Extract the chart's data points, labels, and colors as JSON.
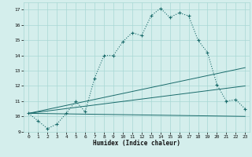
{
  "xlabel": "Humidex (Indice chaleur)",
  "ylabel": "",
  "bg_color": "#d4eeec",
  "grid_color": "#a8d8d4",
  "line_color": "#1a6b6b",
  "xlim": [
    -0.5,
    23.5
  ],
  "ylim": [
    9,
    17.5
  ],
  "xticks": [
    0,
    1,
    2,
    3,
    4,
    5,
    6,
    7,
    8,
    9,
    10,
    11,
    12,
    13,
    14,
    15,
    16,
    17,
    18,
    19,
    20,
    21,
    22,
    23
  ],
  "yticks": [
    9,
    10,
    11,
    12,
    13,
    14,
    15,
    16,
    17
  ],
  "line1_x": [
    0,
    1,
    2,
    3,
    4,
    5,
    6,
    7,
    8,
    9,
    10,
    11,
    12,
    13,
    14,
    15,
    16,
    17,
    18,
    19,
    20,
    21,
    22,
    23
  ],
  "line1_y": [
    10.2,
    9.7,
    9.2,
    9.5,
    10.2,
    11.0,
    10.3,
    12.5,
    14.0,
    14.0,
    14.9,
    15.5,
    15.3,
    16.6,
    17.1,
    16.5,
    16.8,
    16.6,
    15.0,
    14.2,
    12.1,
    11.0,
    11.1,
    10.5
  ],
  "line2_x": [
    0,
    23
  ],
  "line2_y": [
    10.2,
    13.2
  ],
  "line3_x": [
    0,
    23
  ],
  "line3_y": [
    10.2,
    12.0
  ],
  "line4_x": [
    0,
    23
  ],
  "line4_y": [
    10.2,
    10.0
  ]
}
